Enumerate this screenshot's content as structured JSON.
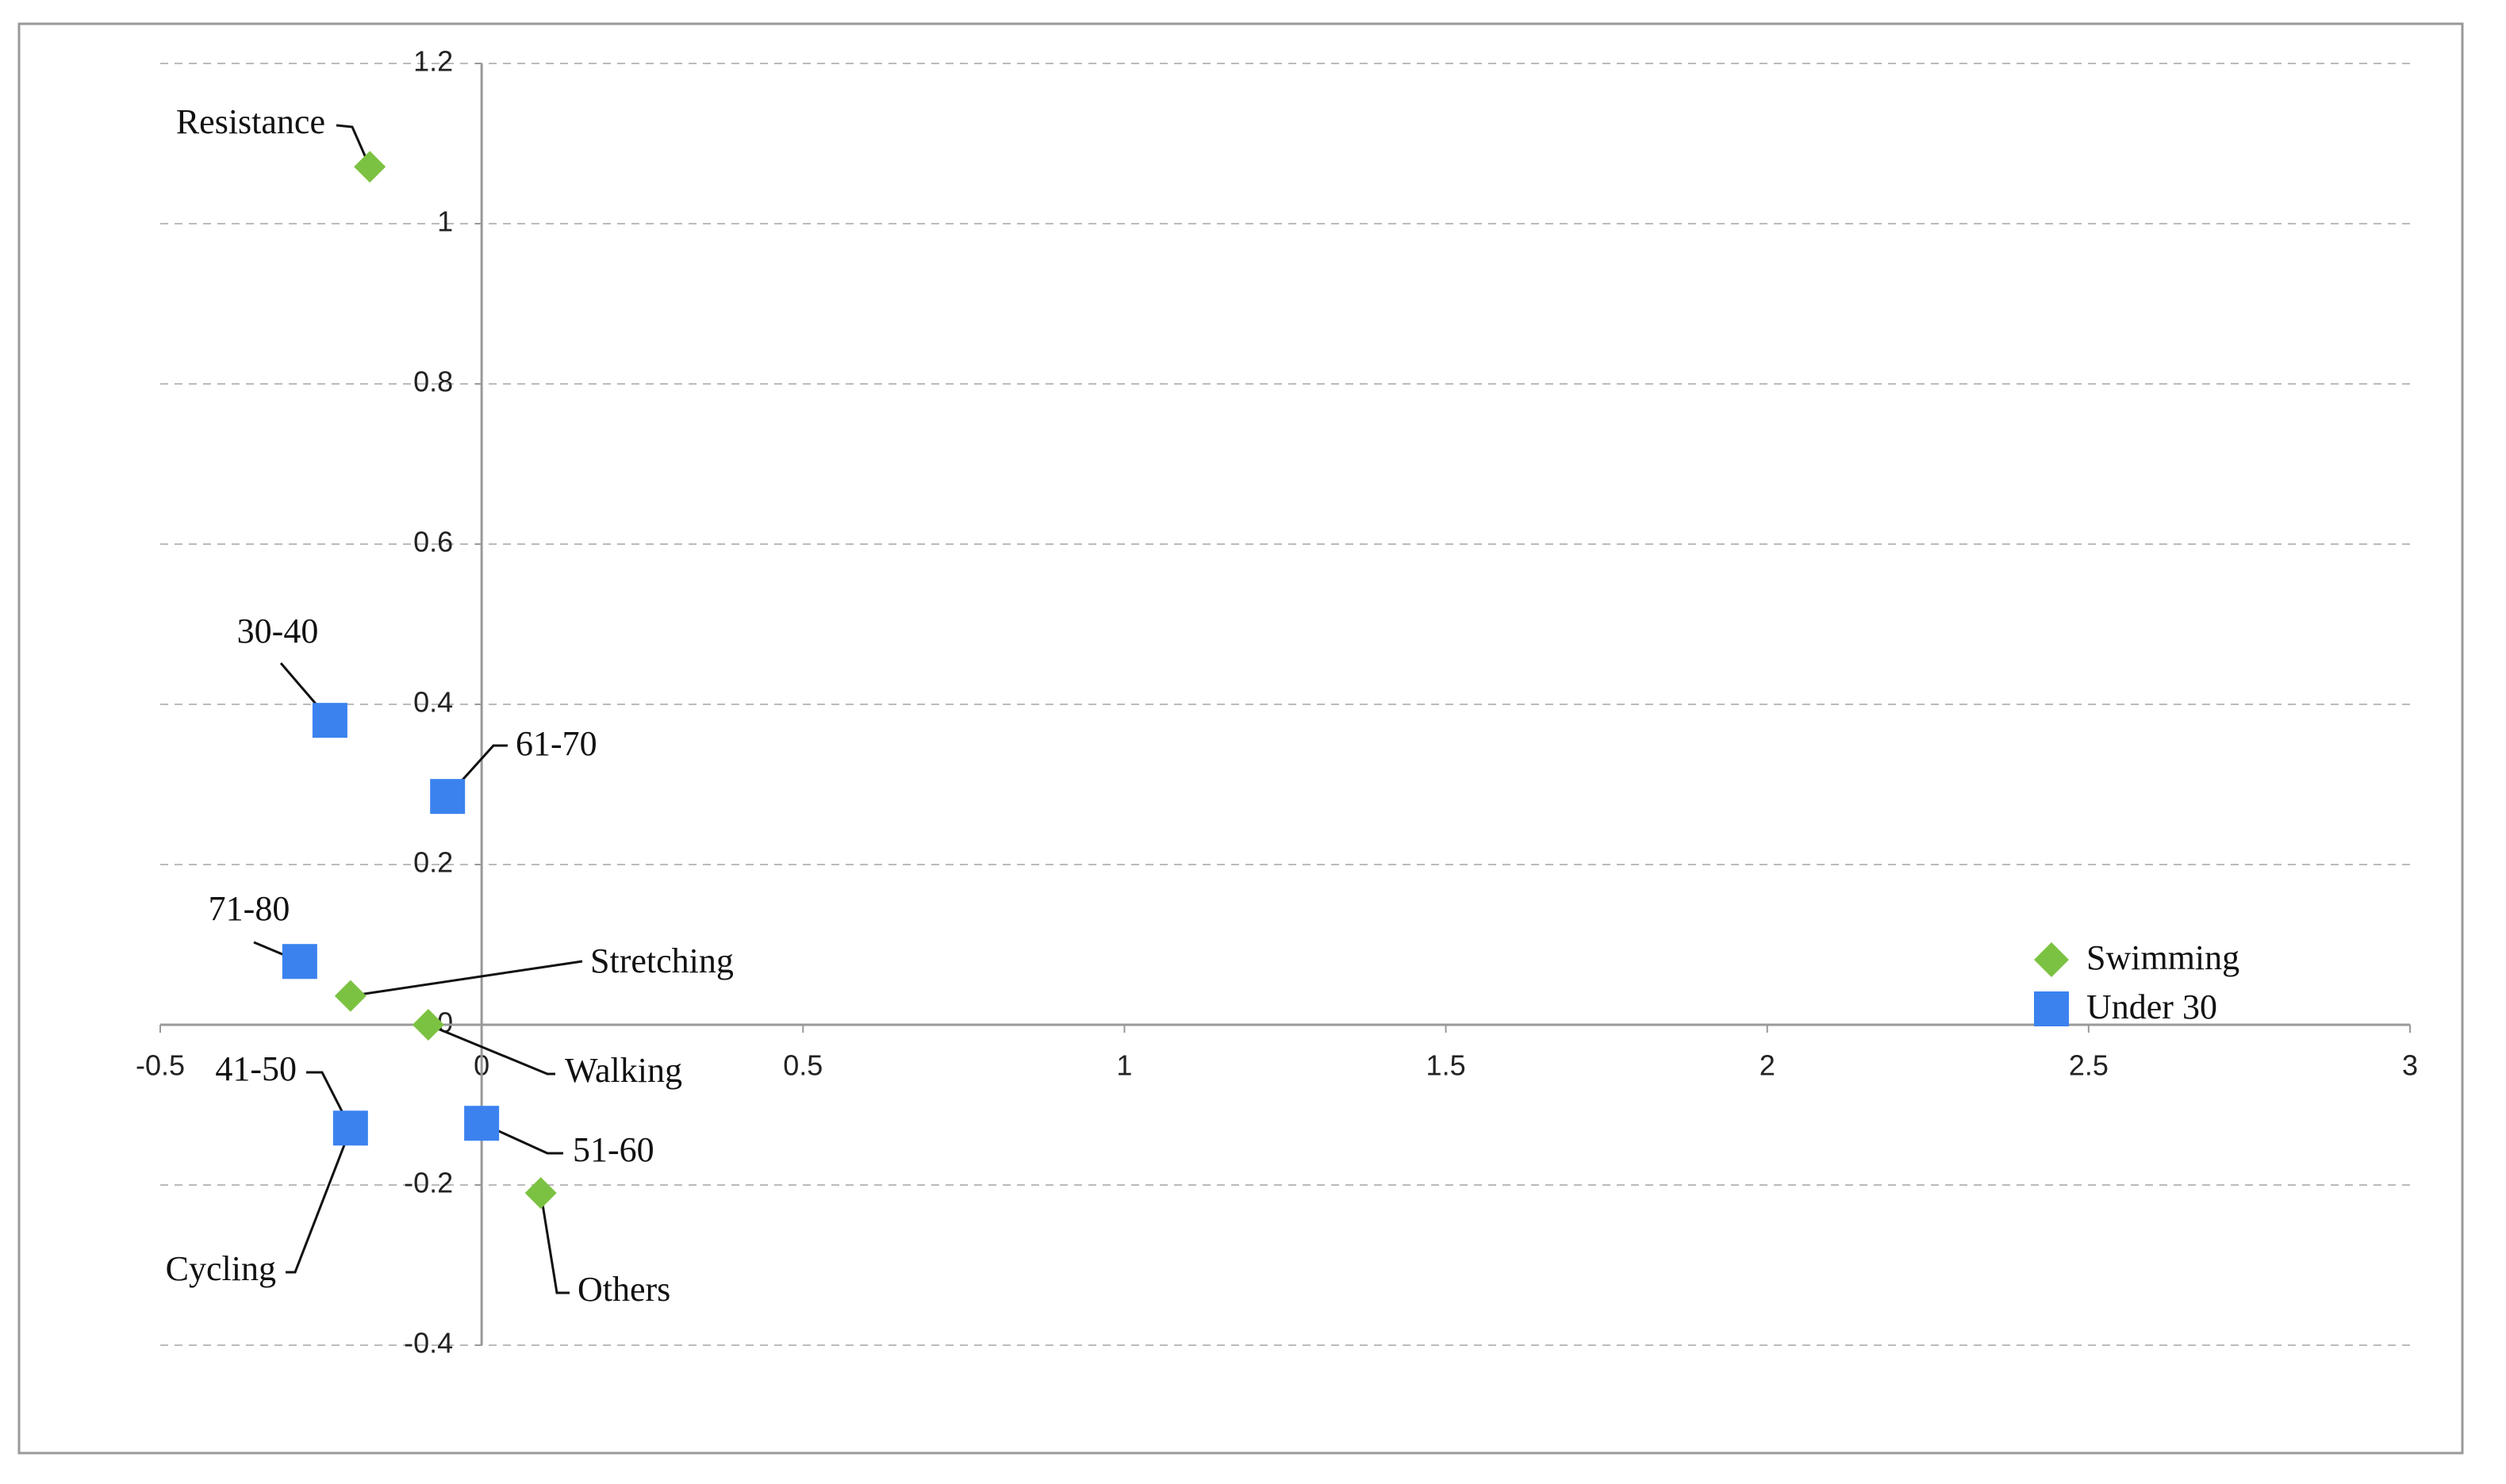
{
  "chart_data": {
    "type": "scatter",
    "xlim": [
      -0.5,
      3
    ],
    "xticks": [
      -0.5,
      0,
      0.5,
      1,
      1.5,
      2,
      2.5,
      3
    ],
    "ylim": [
      -0.4,
      1.2
    ],
    "yticks": [
      -0.4,
      -0.2,
      0,
      0.2,
      0.4,
      0.6,
      0.8,
      1,
      1.2
    ],
    "grid": true,
    "legend": "right",
    "series": [
      {
        "name": "Swimming",
        "color": "#7cc242",
        "marker": "diamond",
        "labels": [
          "Resistance",
          "Stretching",
          "Walking",
          "Cycling",
          "Others"
        ],
        "x": [
          -0.174,
          -0.204,
          -0.083,
          -0.204,
          0.092
        ],
        "values": [
          1.071,
          0.036,
          0,
          -0.13,
          -0.21
        ]
      },
      {
        "name": "Under 30",
        "color": "#3b82ef",
        "marker": "square",
        "labels": [
          "30-40",
          "61-70",
          "71-80",
          "41-50",
          "51-60"
        ],
        "x": [
          -0.236,
          -0.053,
          -0.283,
          -0.204,
          0
        ],
        "values": [
          0.38,
          0.285,
          0.079,
          -0.129,
          -0.123
        ]
      }
    ]
  }
}
